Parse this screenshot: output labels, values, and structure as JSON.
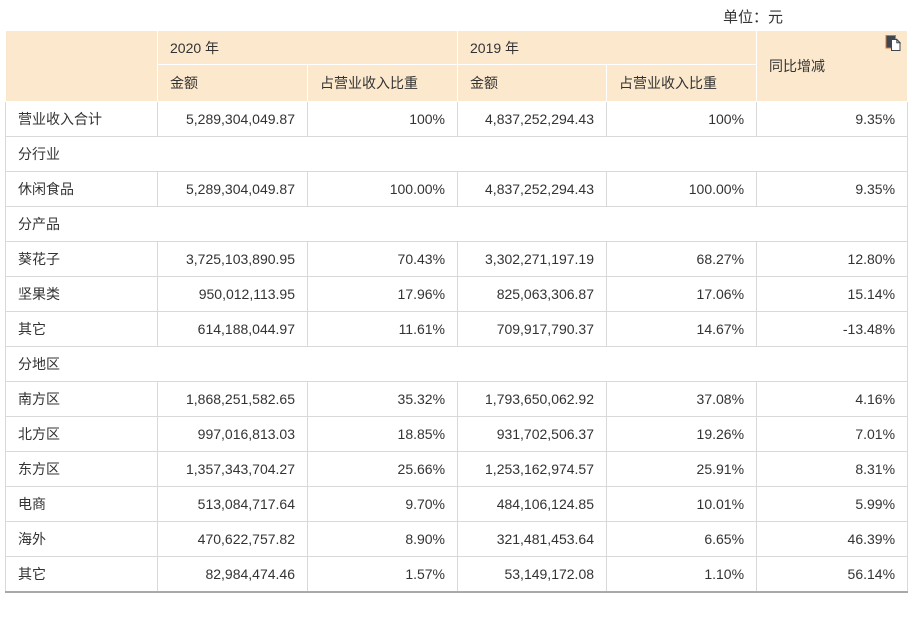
{
  "unit_label": "单位：元",
  "colors": {
    "header_bg": "#fce9cd",
    "body_border": "#d9d9d9",
    "bottom_border": "#a9a9a9",
    "text": "#333333"
  },
  "icons": {
    "copy": "copy-icon"
  },
  "table": {
    "header": {
      "corner": "",
      "groups": [
        {
          "label": "2020 年",
          "children": [
            "金额",
            "占营业收入比重"
          ]
        },
        {
          "label": "2019 年",
          "children": [
            "金额",
            "占营业收入比重"
          ]
        }
      ],
      "yoy": "同比增减"
    },
    "rows": [
      {
        "type": "data",
        "label": "营业收入合计",
        "values": [
          "5,289,304,049.87",
          "100%",
          "4,837,252,294.43",
          "100%",
          "9.35%"
        ]
      },
      {
        "type": "section",
        "label": "分行业"
      },
      {
        "type": "data",
        "label": "休闲食品",
        "values": [
          "5,289,304,049.87",
          "100.00%",
          "4,837,252,294.43",
          "100.00%",
          "9.35%"
        ]
      },
      {
        "type": "section",
        "label": "分产品"
      },
      {
        "type": "data",
        "label": "葵花子",
        "values": [
          "3,725,103,890.95",
          "70.43%",
          "3,302,271,197.19",
          "68.27%",
          "12.80%"
        ]
      },
      {
        "type": "data",
        "label": "坚果类",
        "values": [
          "950,012,113.95",
          "17.96%",
          "825,063,306.87",
          "17.06%",
          "15.14%"
        ]
      },
      {
        "type": "data",
        "label": "其它",
        "values": [
          "614,188,044.97",
          "11.61%",
          "709,917,790.37",
          "14.67%",
          "-13.48%"
        ]
      },
      {
        "type": "section",
        "label": "分地区"
      },
      {
        "type": "data",
        "label": "南方区",
        "values": [
          "1,868,251,582.65",
          "35.32%",
          "1,793,650,062.92",
          "37.08%",
          "4.16%"
        ]
      },
      {
        "type": "data",
        "label": "北方区",
        "values": [
          "997,016,813.03",
          "18.85%",
          "931,702,506.37",
          "19.26%",
          "7.01%"
        ]
      },
      {
        "type": "data",
        "label": "东方区",
        "values": [
          "1,357,343,704.27",
          "25.66%",
          "1,253,162,974.57",
          "25.91%",
          "8.31%"
        ]
      },
      {
        "type": "data",
        "label": "电商",
        "values": [
          "513,084,717.64",
          "9.70%",
          "484,106,124.85",
          "10.01%",
          "5.99%"
        ]
      },
      {
        "type": "data",
        "label": "海外",
        "values": [
          "470,622,757.82",
          "8.90%",
          "321,481,453.64",
          "6.65%",
          "46.39%"
        ]
      },
      {
        "type": "data",
        "label": "其它",
        "values": [
          "82,984,474.46",
          "1.57%",
          "53,149,172.08",
          "1.10%",
          "56.14%"
        ]
      }
    ]
  }
}
